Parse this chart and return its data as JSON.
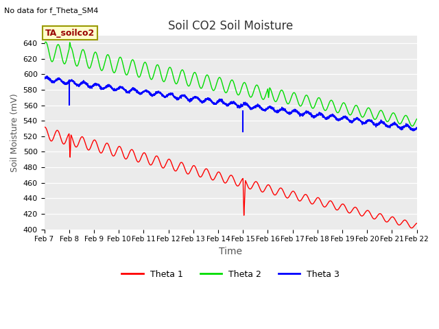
{
  "title": "Soil CO2 Soil Moisture",
  "xlabel": "Time",
  "ylabel": "Soil Moisture (mV)",
  "subtitle": "No data for f_Theta_SM4",
  "annotation": "TA_soilco2",
  "ylim": [
    400,
    650
  ],
  "yticks": [
    400,
    420,
    440,
    460,
    480,
    500,
    520,
    540,
    560,
    580,
    600,
    620,
    640
  ],
  "x_tick_labels": [
    "Feb 7",
    "Feb 8",
    "Feb 9",
    "Feb 10",
    "Feb 11",
    "Feb 12",
    "Feb 13",
    "Feb 14",
    "Feb 15",
    "Feb 16",
    "Feb 17",
    "Feb 18",
    "Feb 19",
    "Feb 20",
    "Feb 21",
    "Feb 22"
  ],
  "bg_color": "#ebebeb",
  "line_colors": {
    "theta1": "#ff0000",
    "theta2": "#00dd00",
    "theta3": "#0000ff"
  },
  "legend_labels": [
    "Theta 1",
    "Theta 2",
    "Theta 3"
  ]
}
